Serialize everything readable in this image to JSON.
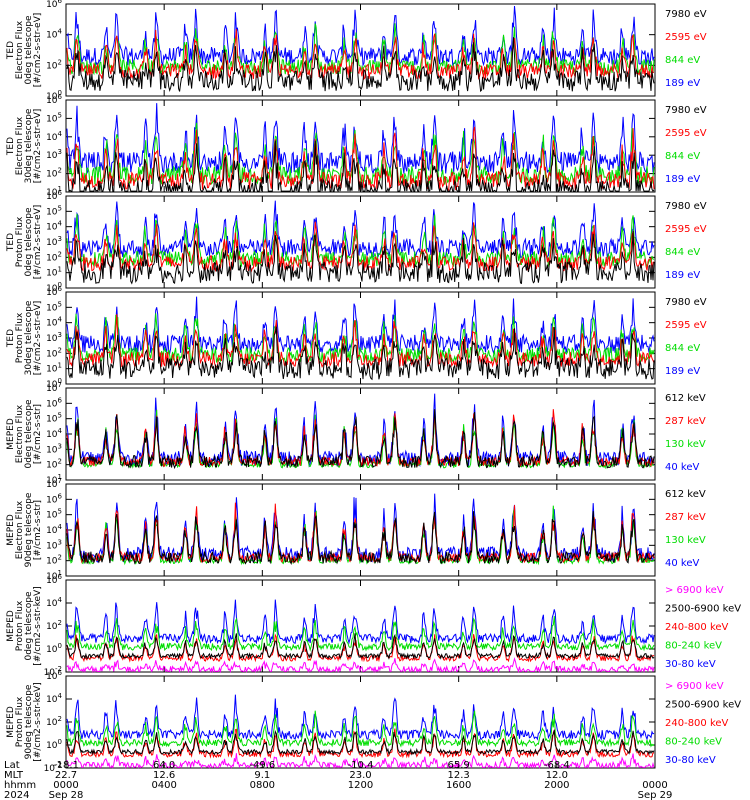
{
  "chart_data": {
    "type": "line",
    "x_axis": {
      "range": [
        "2024-09-28 00:00",
        "2024-09-29 00:00"
      ],
      "row_labels": [
        "Lat",
        "MLT",
        "hhmm",
        "2024"
      ],
      "ticks": [
        {
          "lat": "-18.1",
          "mlt": "22.7",
          "hhmm": "0000",
          "date": "Sep 28"
        },
        {
          "lat": "64.0",
          "mlt": "12.6",
          "hhmm": "0400",
          "date": ""
        },
        {
          "lat": "-49.6",
          "mlt": "9.1",
          "hhmm": "0800",
          "date": ""
        },
        {
          "lat": "-10.4",
          "mlt": "23.0",
          "hhmm": "1200",
          "date": ""
        },
        {
          "lat": "65.9",
          "mlt": "12.3",
          "hhmm": "1600",
          "date": ""
        },
        {
          "lat": "-68.4",
          "mlt": "12.0",
          "hhmm": "2000",
          "date": ""
        },
        {
          "lat": "",
          "mlt": "",
          "hhmm": "0000",
          "date": "Sep 29"
        }
      ]
    },
    "panels": [
      {
        "ylabel": [
          "TED",
          "Electron Flux",
          "0deg telescope",
          "[#/cm2-s-str-eV]"
        ],
        "y_scale": "log",
        "ylim_exp": [
          0,
          6
        ],
        "tick_exps": [
          0,
          2,
          4,
          6
        ],
        "series": [
          {
            "name": "7980 eV",
            "color": "#000000"
          },
          {
            "name": "2595 eV",
            "color": "#ff0000"
          },
          {
            "name": "844 eV",
            "color": "#00dd00"
          },
          {
            "name": "189 eV",
            "color": "#0000ff"
          }
        ]
      },
      {
        "ylabel": [
          "TED",
          "Electron Flux",
          "30deg telescope",
          "[#/cm2-s-str-eV]"
        ],
        "y_scale": "log",
        "ylim_exp": [
          1,
          6
        ],
        "tick_exps": [
          1,
          2,
          3,
          4,
          5,
          6
        ],
        "series": [
          {
            "name": "7980 eV",
            "color": "#000000"
          },
          {
            "name": "2595 eV",
            "color": "#ff0000"
          },
          {
            "name": "844 eV",
            "color": "#00dd00"
          },
          {
            "name": "189 eV",
            "color": "#0000ff"
          }
        ]
      },
      {
        "ylabel": [
          "TED",
          "Proton Flux",
          "0deg telescope",
          "[#/cm2-s-str-eV]"
        ],
        "y_scale": "log",
        "ylim_exp": [
          0,
          6
        ],
        "tick_exps": [
          0,
          1,
          2,
          3,
          4,
          5,
          6
        ],
        "series": [
          {
            "name": "7980 eV",
            "color": "#000000"
          },
          {
            "name": "2595 eV",
            "color": "#ff0000"
          },
          {
            "name": "844 eV",
            "color": "#00dd00"
          },
          {
            "name": "189 eV",
            "color": "#0000ff"
          }
        ]
      },
      {
        "ylabel": [
          "TED",
          "Proton Flux",
          "30deg telescope",
          "[#/cm2-s-str-eV]"
        ],
        "y_scale": "log",
        "ylim_exp": [
          0,
          6
        ],
        "tick_exps": [
          0,
          1,
          2,
          3,
          4,
          5,
          6
        ],
        "series": [
          {
            "name": "7980 eV",
            "color": "#000000"
          },
          {
            "name": "2595 eV",
            "color": "#ff0000"
          },
          {
            "name": "844 eV",
            "color": "#00dd00"
          },
          {
            "name": "189 eV",
            "color": "#0000ff"
          }
        ]
      },
      {
        "ylabel": [
          "MEPED",
          "Electron Flux",
          "0deg telescope",
          "[#/cm2-s-str]"
        ],
        "y_scale": "log",
        "ylim_exp": [
          1,
          7
        ],
        "tick_exps": [
          1,
          2,
          3,
          4,
          5,
          6,
          7
        ],
        "series": [
          {
            "name": "612 keV",
            "color": "#000000"
          },
          {
            "name": "287 keV",
            "color": "#ff0000"
          },
          {
            "name": "130 keV",
            "color": "#00dd00"
          },
          {
            "name": "40 keV",
            "color": "#0000ff"
          }
        ]
      },
      {
        "ylabel": [
          "MEPED",
          "Electron Flux",
          "90deg telescope",
          "[#/cm2-s-str]"
        ],
        "y_scale": "log",
        "ylim_exp": [
          1,
          7
        ],
        "tick_exps": [
          1,
          2,
          3,
          4,
          5,
          6,
          7
        ],
        "series": [
          {
            "name": "612 keV",
            "color": "#000000"
          },
          {
            "name": "287 keV",
            "color": "#ff0000"
          },
          {
            "name": "130 keV",
            "color": "#00dd00"
          },
          {
            "name": "40 keV",
            "color": "#0000ff"
          }
        ]
      },
      {
        "ylabel": [
          "MEPED",
          "Proton Flux",
          "0deg telescope",
          "[#/cm2-s-str-keV]"
        ],
        "y_scale": "log",
        "ylim_exp": [
          -2,
          6
        ],
        "tick_exps": [
          -2,
          0,
          2,
          4,
          6
        ],
        "series": [
          {
            "name": "> 6900 keV",
            "color": "#ff00ff"
          },
          {
            "name": "2500-6900 keV",
            "color": "#000000"
          },
          {
            "name": "240-800 keV",
            "color": "#ff0000"
          },
          {
            "name": "80-240 keV",
            "color": "#00dd00"
          },
          {
            "name": "30-80 keV",
            "color": "#0000ff"
          }
        ]
      },
      {
        "ylabel": [
          "MEPED",
          "Proton Flux",
          "90deg telescope",
          "[#/cm2-s-str-keV]"
        ],
        "y_scale": "log",
        "ylim_exp": [
          -2,
          6
        ],
        "tick_exps": [
          -2,
          0,
          2,
          4,
          6
        ],
        "series": [
          {
            "name": "> 6900 keV",
            "color": "#ff00ff"
          },
          {
            "name": "2500-6900 keV",
            "color": "#000000"
          },
          {
            "name": "240-800 keV",
            "color": "#ff0000"
          },
          {
            "name": "80-240 keV",
            "color": "#00dd00"
          },
          {
            "name": "30-80 keV",
            "color": "#0000ff"
          }
        ]
      }
    ]
  }
}
